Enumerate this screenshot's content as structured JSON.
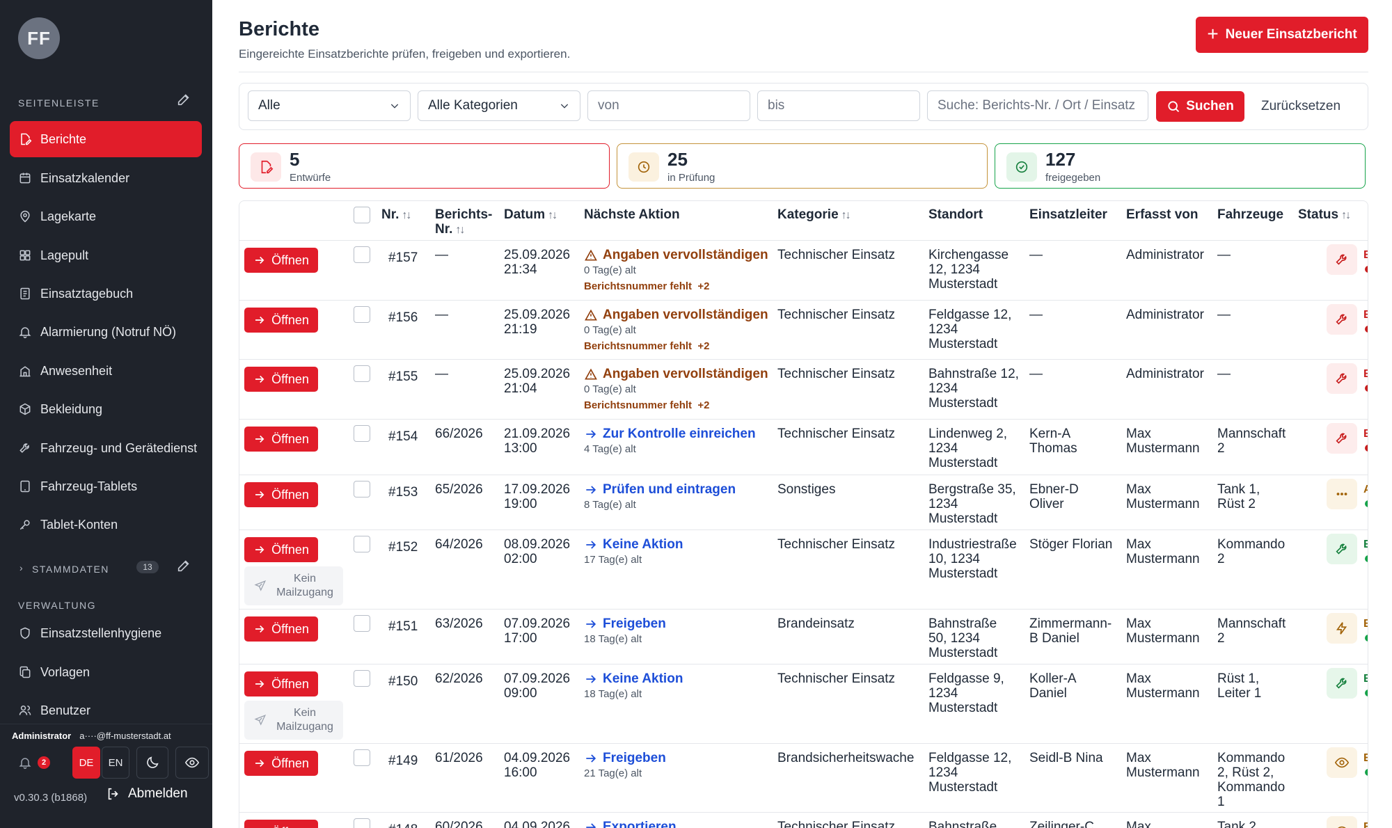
{
  "sidebar": {
    "avatar_initials": "FF",
    "section_sidebar": "SEITENLEISTE",
    "items": [
      {
        "label": "Berichte",
        "icon": "file-edit-icon"
      },
      {
        "label": "Einsatzkalender",
        "icon": "calendar-icon"
      },
      {
        "label": "Lagekarte",
        "icon": "map-pin-icon"
      },
      {
        "label": "Lagepult",
        "icon": "grid-icon"
      },
      {
        "label": "Einsatztagebuch",
        "icon": "notebook-icon"
      },
      {
        "label": "Alarmierung (Notruf NÖ)",
        "icon": "bell-icon"
      },
      {
        "label": "Anwesenheit",
        "icon": "building-icon"
      },
      {
        "label": "Bekleidung",
        "icon": "box-icon"
      },
      {
        "label": "Fahrzeug- und Gerätedienst",
        "icon": "wrench-icon"
      },
      {
        "label": "Fahrzeug-Tablets",
        "icon": "tablet-icon"
      },
      {
        "label": "Tablet-Konten",
        "icon": "key-icon"
      }
    ],
    "section_stammdaten": "STAMMDATEN",
    "stammdaten_count": "13",
    "section_verwaltung": "VERWALTUNG",
    "admin_items": [
      {
        "label": "Einsatzstellenhygiene",
        "icon": "shield-icon"
      },
      {
        "label": "Vorlagen",
        "icon": "copy-icon"
      },
      {
        "label": "Benutzer",
        "icon": "users-icon"
      }
    ],
    "footer": {
      "user_name": "Administrator",
      "user_email": "a····@ff-musterstadt.at",
      "notification_count": "2",
      "lang_de": "DE",
      "lang_en": "EN",
      "version": "v0.30.3 (b1868)",
      "logout": "Abmelden"
    }
  },
  "header": {
    "title": "Berichte",
    "subtitle": "Eingereichte Einsatzberichte prüfen, freigeben und exportieren.",
    "new_button": "Neuer Einsatzbericht"
  },
  "filters": {
    "status_select": "Alle",
    "category_select": "Alle Kategorien",
    "from_placeholder": "von",
    "to_placeholder": "bis",
    "search_placeholder": "Suche: Berichts-Nr. / Ort / Einsatz",
    "search_button": "Suchen",
    "reset_button": "Zurücksetzen"
  },
  "stats": [
    {
      "value": "5",
      "label": "Entwürfe",
      "color": "#e11d2a"
    },
    {
      "value": "25",
      "label": "in Prüfung",
      "color": "#b7791f"
    },
    {
      "value": "127",
      "label": "freigegeben",
      "color": "#16a34a"
    }
  ],
  "table": {
    "headers": {
      "nr": "Nr.",
      "berichts_nr_1": "Berichts-",
      "berichts_nr_2": "Nr.",
      "datum": "Datum",
      "naechste_aktion": "Nächste Aktion",
      "kategorie": "Kategorie",
      "standort": "Standort",
      "einsatzleiter": "Einsatzleiter",
      "erfasst_von": "Erfasst von",
      "fahrzeuge": "Fahrzeuge",
      "status": "Status"
    },
    "open_label": "Öffnen",
    "no_mail_label_1": "Kein",
    "no_mail_label_2": "Mailzugang",
    "rows": [
      {
        "nr": "#157",
        "berichts_nr": "—",
        "date": "25.09.2026",
        "time": "21:34",
        "action": "Angaben vervollständigen",
        "action_type": "warn",
        "age": "0 Tag(e) alt",
        "missing": "Berichtsnummer fehlt",
        "missing_more": "+2",
        "kategorie": "Technischer Einsatz",
        "standort": [
          "Kirchengasse",
          "12, 1234",
          "Musterstadt"
        ],
        "einsatzleiter": [
          "—"
        ],
        "erfasst": [
          "Administrator"
        ],
        "fahrzeuge": [
          "—"
        ],
        "status": "Entw",
        "status_color": "#c81e1e",
        "status_icon": "wrench-icon",
        "dots": [
          "#c81e1e",
          "#6b7280",
          "#6b7280"
        ],
        "nomail": false
      },
      {
        "nr": "#156",
        "berichts_nr": "—",
        "date": "25.09.2026",
        "time": "21:19",
        "action": "Angaben vervollständigen",
        "action_type": "warn",
        "age": "0 Tag(e) alt",
        "missing": "Berichtsnummer fehlt",
        "missing_more": "+2",
        "kategorie": "Technischer Einsatz",
        "standort": [
          "Feldgasse 12,",
          "1234",
          "Musterstadt"
        ],
        "einsatzleiter": [
          "—"
        ],
        "erfasst": [
          "Administrator"
        ],
        "fahrzeuge": [
          "—"
        ],
        "status": "Entw",
        "status_color": "#c81e1e",
        "status_icon": "wrench-icon",
        "dots": [
          "#c81e1e",
          "#6b7280",
          "#6b7280"
        ],
        "nomail": false
      },
      {
        "nr": "#155",
        "berichts_nr": "—",
        "date": "25.09.2026",
        "time": "21:04",
        "action": "Angaben vervollständigen",
        "action_type": "warn",
        "age": "0 Tag(e) alt",
        "missing": "Berichtsnummer fehlt",
        "missing_more": "+2",
        "kategorie": "Technischer Einsatz",
        "standort": [
          "Bahnstraße 12,",
          "1234",
          "Musterstadt"
        ],
        "einsatzleiter": [
          "—"
        ],
        "erfasst": [
          "Administrator"
        ],
        "fahrzeuge": [
          "—"
        ],
        "status": "Entw",
        "status_color": "#c81e1e",
        "status_icon": "wrench-icon",
        "dots": [
          "#c81e1e",
          "#6b7280",
          "#6b7280"
        ],
        "nomail": false
      },
      {
        "nr": "#154",
        "berichts_nr": "66/2026",
        "date": "21.09.2026",
        "time": "13:00",
        "action": "Zur Kontrolle einreichen",
        "action_type": "blue",
        "age": "4 Tag(e) alt",
        "missing": "",
        "missing_more": "",
        "kategorie": "Technischer Einsatz",
        "standort": [
          "Lindenweg 2,",
          "1234",
          "Musterstadt"
        ],
        "einsatzleiter": [
          "Kern-A",
          "Thomas"
        ],
        "erfasst": [
          "Max",
          "Mustermann"
        ],
        "fahrzeuge": [
          "Mannschaft",
          "2"
        ],
        "status": "Entw",
        "status_color": "#c81e1e",
        "status_icon": "wrench-icon",
        "dots": [
          "#c81e1e",
          "#6b7280",
          "#6b7280"
        ],
        "nomail": false
      },
      {
        "nr": "#153",
        "berichts_nr": "65/2026",
        "date": "17.09.2026",
        "time": "19:00",
        "action": "Prüfen und eintragen",
        "action_type": "blue",
        "age": "8 Tag(e) alt",
        "missing": "",
        "missing_more": "",
        "kategorie": "Sonstiges",
        "standort": [
          "Bergstraße 35,",
          "1234",
          "Musterstadt"
        ],
        "einsatzleiter": [
          "Ebner-D",
          "Oliver"
        ],
        "erfasst": [
          "Max",
          "Mustermann"
        ],
        "fahrzeuge": [
          "Tank 1,",
          "Rüst 2"
        ],
        "status": "Abge",
        "status_color": "#a16207",
        "status_icon": "more-icon",
        "dots": [
          "#16a34a",
          "#16a34a",
          "#b7791f"
        ],
        "nomail": false
      },
      {
        "nr": "#152",
        "berichts_nr": "64/2026",
        "date": "08.09.2026",
        "time": "02:00",
        "action": "Keine Aktion",
        "action_type": "blue",
        "age": "17 Tag(e) alt",
        "missing": "",
        "missing_more": "",
        "kategorie": "Technischer Einsatz",
        "standort": [
          "Industriestraße",
          "10, 1234",
          "Musterstadt"
        ],
        "einsatzleiter": [
          "Stöger Florian"
        ],
        "erfasst": [
          "Max",
          "Mustermann"
        ],
        "fahrzeuge": [
          "Kommando",
          "2"
        ],
        "status": "Expo",
        "status_color": "#15803d",
        "status_icon": "wrench-icon",
        "dots": [
          "#16a34a",
          "#16a34a",
          "#16a34a"
        ],
        "nomail": true
      },
      {
        "nr": "#151",
        "berichts_nr": "63/2026",
        "date": "07.09.2026",
        "time": "17:00",
        "action": "Freigeben",
        "action_type": "blue",
        "age": "18 Tag(e) alt",
        "missing": "",
        "missing_more": "",
        "kategorie": "Brandeinsatz",
        "standort": [
          "Bahnstraße",
          "50, 1234",
          "Musterstadt"
        ],
        "einsatzleiter": [
          "Zimmermann-",
          "B Daniel"
        ],
        "erfasst": [
          "Max",
          "Mustermann"
        ],
        "fahrzeuge": [
          "Mannschaft",
          "2"
        ],
        "status": "Einge",
        "status_color": "#a16207",
        "status_icon": "bolt-icon",
        "dots": [
          "#16a34a",
          "#16a34a",
          "#6b7280"
        ],
        "nomail": false
      },
      {
        "nr": "#150",
        "berichts_nr": "62/2026",
        "date": "07.09.2026",
        "time": "09:00",
        "action": "Keine Aktion",
        "action_type": "blue",
        "age": "18 Tag(e) alt",
        "missing": "",
        "missing_more": "",
        "kategorie": "Technischer Einsatz",
        "standort": [
          "Feldgasse 9,",
          "1234",
          "Musterstadt"
        ],
        "einsatzleiter": [
          "Koller-A",
          "Daniel"
        ],
        "erfasst": [
          "Max",
          "Mustermann"
        ],
        "fahrzeuge": [
          "Rüst 1,",
          "Leiter 1"
        ],
        "status": "Expo",
        "status_color": "#15803d",
        "status_icon": "wrench-icon",
        "dots": [
          "#16a34a",
          "#16a34a",
          "#16a34a"
        ],
        "nomail": true
      },
      {
        "nr": "#149",
        "berichts_nr": "61/2026",
        "date": "04.09.2026",
        "time": "16:00",
        "action": "Freigeben",
        "action_type": "blue",
        "age": "21 Tag(e) alt",
        "missing": "",
        "missing_more": "",
        "kategorie": "Brandsicherheitswache",
        "standort": [
          "Feldgasse 12,",
          "1234",
          "Musterstadt"
        ],
        "einsatzleiter": [
          "Seidl-B Nina"
        ],
        "erfasst": [
          "Max",
          "Mustermann"
        ],
        "fahrzeuge": [
          "Kommando",
          "2, Rüst 2,",
          "Kommando",
          "1"
        ],
        "status": "Einge",
        "status_color": "#a16207",
        "status_icon": "eye-icon",
        "dots": [
          "#16a34a",
          "#16a34a",
          "#6b7280"
        ],
        "nomail": false
      },
      {
        "nr": "#148",
        "berichts_nr": "60/2026",
        "date": "04.09.2026",
        "time": "",
        "action": "Exportieren",
        "action_type": "blue",
        "age": "",
        "missing": "",
        "missing_more": "",
        "kategorie": "Technischer Einsatz",
        "standort": [
          "Bahnstraße"
        ],
        "einsatzleiter": [
          "Zeilinger-C"
        ],
        "erfasst": [
          "Max"
        ],
        "fahrzeuge": [
          "Tank 2"
        ],
        "status": "Einge",
        "status_color": "#a16207",
        "status_icon": "eye-icon",
        "dots": [],
        "nomail": false
      }
    ]
  }
}
